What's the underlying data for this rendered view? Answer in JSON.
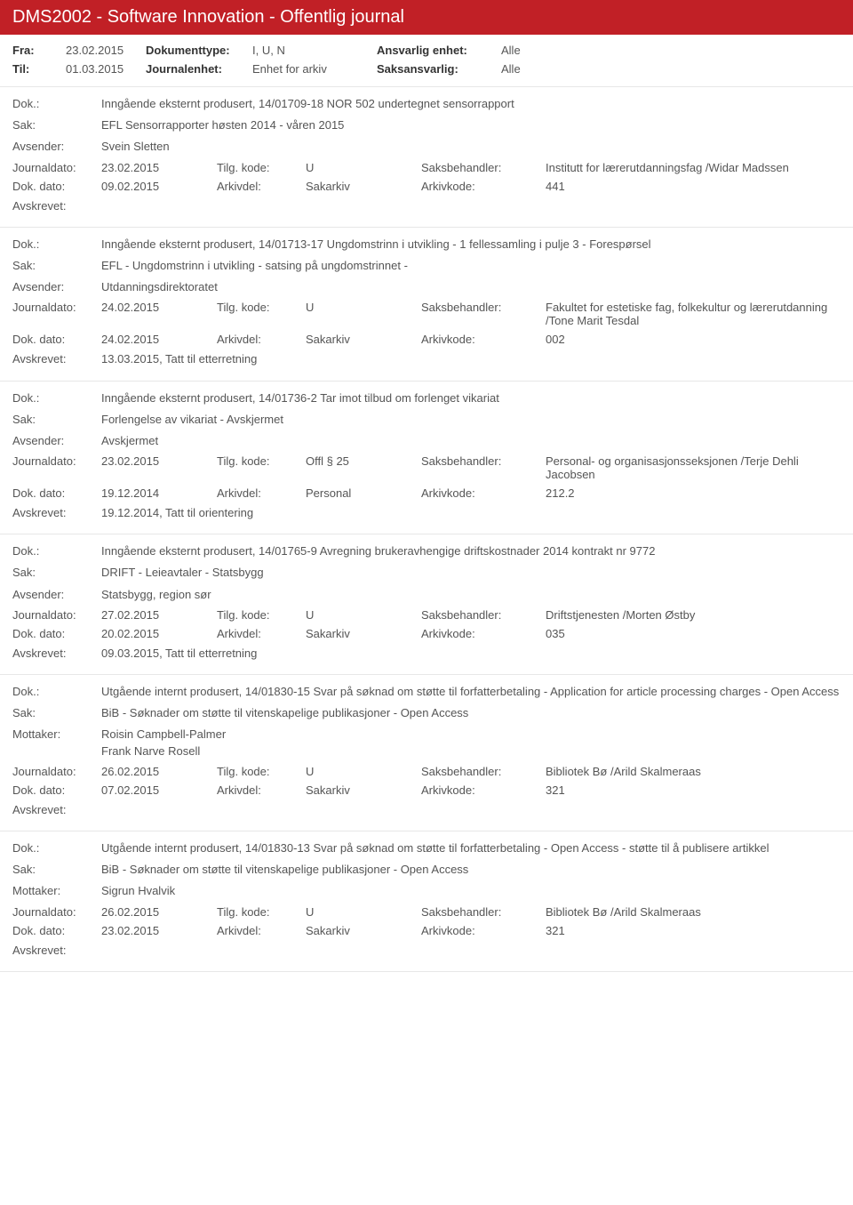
{
  "header": {
    "title": "DMS2002 - Software Innovation - Offentlig journal"
  },
  "filters": {
    "fra_lbl": "Fra:",
    "fra": "23.02.2015",
    "til_lbl": "Til:",
    "til": "01.03.2015",
    "doktype_lbl": "Dokumenttype:",
    "doktype": "I, U, N",
    "journalenhet_lbl": "Journalenhet:",
    "journalenhet": "Enhet for arkiv",
    "ansvarlig_lbl": "Ansvarlig enhet:",
    "ansvarlig": "Alle",
    "saksansvarlig_lbl": "Saksansvarlig:",
    "saksansvarlig": "Alle"
  },
  "labels": {
    "dok": "Dok.:",
    "sak": "Sak:",
    "avsender": "Avsender:",
    "mottaker": "Mottaker:",
    "journaldato": "Journaldato:",
    "tilgkode": "Tilg. kode:",
    "saksbehandler": "Saksbehandler:",
    "dokdato": "Dok. dato:",
    "arkivdel": "Arkivdel:",
    "arkivkode": "Arkivkode:",
    "avskrevet": "Avskrevet:"
  },
  "entries": [
    {
      "dok": "Inngående eksternt produsert, 14/01709-18 NOR 502 undertegnet sensorrapport",
      "sak": "EFL Sensorrapporter høsten 2014 - våren 2015",
      "party_lbl": "Avsender:",
      "party": "Svein Sletten",
      "journaldato": "23.02.2015",
      "tilgkode": "U",
      "saksbehandler": "Institutt for lærerutdanningsfag /Widar Madssen",
      "dokdato": "09.02.2015",
      "arkivdel": "Sakarkiv",
      "arkivkode": "441",
      "avskrevet": ""
    },
    {
      "dok": "Inngående eksternt produsert, 14/01713-17 Ungdomstrinn i utvikling - 1 fellessamling i pulje 3 - Forespørsel",
      "sak": "EFL - Ungdomstrinn i utvikling - satsing på ungdomstrinnet -",
      "party_lbl": "Avsender:",
      "party": "Utdanningsdirektoratet",
      "journaldato": "24.02.2015",
      "tilgkode": "U",
      "saksbehandler": "Fakultet for estetiske fag, folkekultur og lærerutdanning /Tone Marit Tesdal",
      "dokdato": "24.02.2015",
      "arkivdel": "Sakarkiv",
      "arkivkode": "002",
      "avskrevet": "13.03.2015, Tatt til etterretning"
    },
    {
      "dok": "Inngående eksternt produsert, 14/01736-2 Tar imot tilbud om forlenget vikariat",
      "sak": "Forlengelse av vikariat - Avskjermet",
      "party_lbl": "Avsender:",
      "party": "Avskjermet",
      "journaldato": "23.02.2015",
      "tilgkode": "Offl § 25",
      "saksbehandler": "Personal- og organisasjonsseksjonen /Terje Dehli Jacobsen",
      "dokdato": "19.12.2014",
      "arkivdel": "Personal",
      "arkivkode": "212.2",
      "avskrevet": "19.12.2014, Tatt til orientering"
    },
    {
      "dok": "Inngående eksternt produsert, 14/01765-9 Avregning brukeravhengige driftskostnader 2014 kontrakt nr 9772",
      "sak": "DRIFT - Leieavtaler - Statsbygg",
      "party_lbl": "Avsender:",
      "party": "Statsbygg, region sør",
      "journaldato": "27.02.2015",
      "tilgkode": "U",
      "saksbehandler": "Driftstjenesten /Morten Østby",
      "dokdato": "20.02.2015",
      "arkivdel": "Sakarkiv",
      "arkivkode": "035",
      "avskrevet": "09.03.2015, Tatt til etterretning"
    },
    {
      "dok": "Utgående internt produsert, 14/01830-15 Svar på søknad om støtte til forfatterbetaling - Application for article processing charges - Open Access",
      "sak": "BiB - Søknader om støtte til vitenskapelige publikasjoner - Open Access",
      "party_lbl": "Mottaker:",
      "party": "Roisin Campbell-Palmer\nFrank Narve Rosell",
      "journaldato": "26.02.2015",
      "tilgkode": "U",
      "saksbehandler": "Bibliotek Bø /Arild Skalmeraas",
      "dokdato": "07.02.2015",
      "arkivdel": "Sakarkiv",
      "arkivkode": "321",
      "avskrevet": ""
    },
    {
      "dok": "Utgående internt produsert, 14/01830-13 Svar på søknad om støtte til forfatterbetaling - Open Access - støtte til å publisere artikkel",
      "sak": "BiB - Søknader om støtte til vitenskapelige publikasjoner - Open Access",
      "party_lbl": "Mottaker:",
      "party": "Sigrun Hvalvik",
      "journaldato": "26.02.2015",
      "tilgkode": "U",
      "saksbehandler": "Bibliotek Bø /Arild Skalmeraas",
      "dokdato": "23.02.2015",
      "arkivdel": "Sakarkiv",
      "arkivkode": "321",
      "avskrevet": ""
    }
  ]
}
